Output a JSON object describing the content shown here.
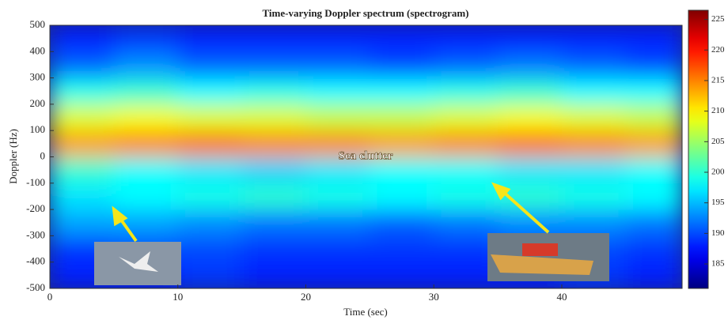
{
  "chart_data": {
    "type": "heatmap",
    "title": "Time-varying Doppler spectrum (spectrogram)",
    "x_label": "Time (sec)",
    "y_label": "Doppler (Hz)",
    "annotation": "Sea clutter",
    "x_bins": [
      0,
      5,
      10,
      15,
      20,
      25,
      30,
      35,
      40,
      45,
      49.4
    ],
    "y_bins": [
      -500,
      -400,
      -300,
      -200,
      -100,
      0,
      100,
      200,
      300,
      400,
      500
    ],
    "z": [
      [
        188,
        188,
        189,
        188,
        188,
        188,
        188,
        188,
        189,
        188
      ],
      [
        189,
        190,
        190,
        189,
        189,
        189,
        189,
        190,
        190,
        189
      ],
      [
        194,
        194,
        193,
        192,
        192,
        191,
        192,
        193,
        193,
        192
      ],
      [
        197,
        198,
        199,
        200,
        199,
        198,
        199,
        200,
        199,
        198
      ],
      [
        200,
        198,
        197,
        196,
        197,
        198,
        198,
        197,
        197,
        198
      ],
      [
        214,
        215,
        216,
        215,
        215,
        214,
        215,
        216,
        215,
        214
      ],
      [
        208,
        209,
        208,
        208,
        207,
        207,
        208,
        209,
        208,
        207
      ],
      [
        199,
        200,
        198,
        199,
        198,
        198,
        199,
        200,
        198,
        198
      ],
      [
        191,
        193,
        191,
        191,
        191,
        190,
        191,
        192,
        191,
        190
      ],
      [
        188,
        189,
        188,
        188,
        188,
        188,
        188,
        188,
        188,
        188
      ]
    ],
    "xlim": [
      0,
      49.4
    ],
    "ylim": [
      -500,
      500
    ],
    "xticks": [
      0,
      10,
      20,
      30,
      40
    ],
    "yticks": [
      -500,
      -400,
      -300,
      -200,
      -100,
      0,
      100,
      200,
      300,
      400,
      500
    ],
    "clim": [
      181,
      226.5
    ],
    "cticks": [
      185,
      190,
      195,
      200,
      205,
      210,
      215,
      220,
      225
    ],
    "colormap": "jet"
  }
}
